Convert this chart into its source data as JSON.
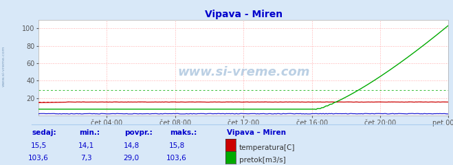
{
  "title": "Vipava - Miren",
  "title_color": "#0000cc",
  "bg_color": "#d8e8f8",
  "plot_bg_color": "#ffffff",
  "grid_color": "#ffaaaa",
  "x_tick_labels": [
    "čet 04:00",
    "čet 08:00",
    "čet 12:00",
    "čet 16:00",
    "čet 20:00",
    "pet 00:00"
  ],
  "x_tick_positions": [
    48,
    96,
    144,
    192,
    240,
    288
  ],
  "x_total_points": 289,
  "ylim": [
    0,
    110
  ],
  "yticks": [
    20,
    40,
    60,
    80,
    100
  ],
  "temp_color": "#cc0000",
  "flow_color": "#00aa00",
  "height_color": "#0000cc",
  "watermark_text": "www.si-vreme.com",
  "sidebar_text": "www.si-vreme.com",
  "legend_title": "Vipava – Miren",
  "legend_entries": [
    "temperatura[C]",
    "pretok[m3/s]"
  ],
  "legend_colors": [
    "#cc0000",
    "#00aa00"
  ],
  "stats_labels": [
    "sedaj:",
    "min.:",
    "povpr.:",
    "maks.:"
  ],
  "stats_temp": [
    "15,5",
    "14,1",
    "14,8",
    "15,8"
  ],
  "stats_flow": [
    "103,6",
    "7,3",
    "29,0",
    "103,6"
  ],
  "stats_color": "#0000cc",
  "stats_value_color": "#0000cc",
  "dashed_temp_val": 15.8,
  "dashed_flow_val": 29.0,
  "flow_rise_start": 195,
  "flow_peak": 103.6,
  "flow_flat": 7.3,
  "temp_val": 15.5,
  "height_val": 2.0
}
